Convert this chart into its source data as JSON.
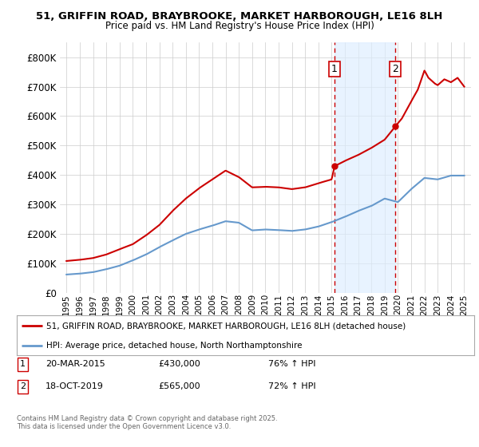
{
  "title1": "51, GRIFFIN ROAD, BRAYBROOKE, MARKET HARBOROUGH, LE16 8LH",
  "title2": "Price paid vs. HM Land Registry's House Price Index (HPI)",
  "bg_color": "#ffffff",
  "grid_color": "#cccccc",
  "red_color": "#cc0000",
  "blue_color": "#6699cc",
  "purchase1_x": 2015.22,
  "purchase1_y": 430000,
  "purchase2_x": 2019.8,
  "purchase2_y": 565000,
  "vline_color": "#cc0000",
  "shade_color": "#ddeeff",
  "legend_label1": "51, GRIFFIN ROAD, BRAYBROOKE, MARKET HARBOROUGH, LE16 8LH (detached house)",
  "legend_label2": "HPI: Average price, detached house, North Northamptonshire",
  "annotation1_date": "20-MAR-2015",
  "annotation1_price": "£430,000",
  "annotation1_hpi": "76% ↑ HPI",
  "annotation2_date": "18-OCT-2019",
  "annotation2_price": "£565,000",
  "annotation2_hpi": "72% ↑ HPI",
  "footer": "Contains HM Land Registry data © Crown copyright and database right 2025.\nThis data is licensed under the Open Government Licence v3.0.",
  "ylim": [
    0,
    850000
  ],
  "yticks": [
    0,
    100000,
    200000,
    300000,
    400000,
    500000,
    600000,
    700000,
    800000
  ],
  "ytick_labels": [
    "£0",
    "£100K",
    "£200K",
    "£300K",
    "£400K",
    "£500K",
    "£600K",
    "£700K",
    "£800K"
  ],
  "xlim": [
    1994.5,
    2025.5
  ],
  "xticks": [
    1995,
    1996,
    1997,
    1998,
    1999,
    2000,
    2001,
    2002,
    2003,
    2004,
    2005,
    2006,
    2007,
    2008,
    2009,
    2010,
    2011,
    2012,
    2013,
    2014,
    2015,
    2016,
    2017,
    2018,
    2019,
    2020,
    2021,
    2022,
    2023,
    2024,
    2025
  ]
}
